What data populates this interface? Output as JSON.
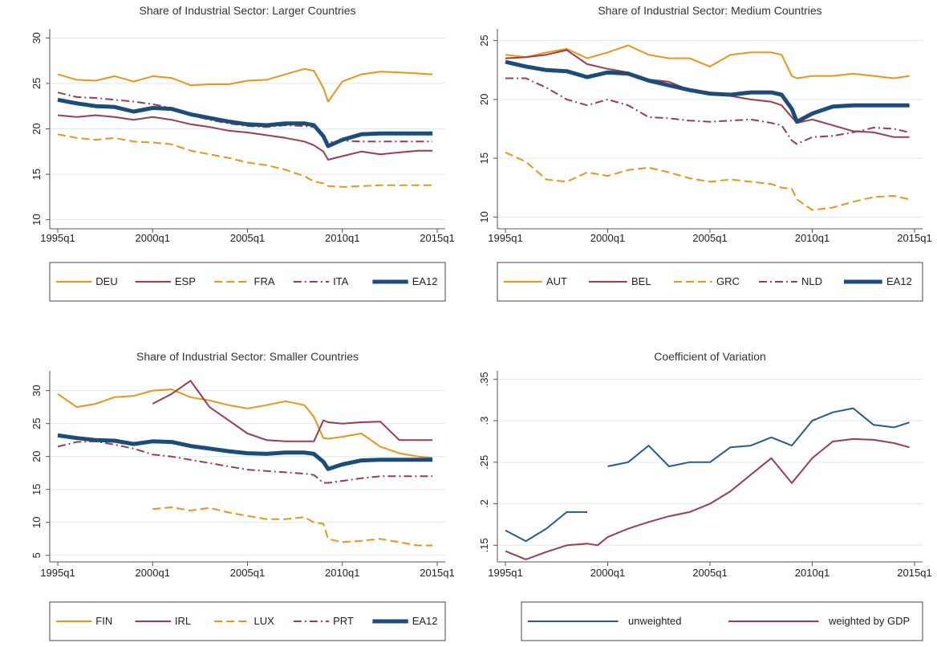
{
  "chart_data": [
    {
      "type": "line",
      "title": "Share of Industrial Sector: Larger Countries",
      "x": [
        "1995q1",
        "1996q1",
        "1997q1",
        "1998q1",
        "1999q1",
        "2000q1",
        "2001q1",
        "2002q1",
        "2003q1",
        "2004q1",
        "2005q1",
        "2006q1",
        "2007q1",
        "2008q1",
        "2008q3",
        "2009q1",
        "2009q2",
        "2010q1",
        "2011q1",
        "2012q1",
        "2013q1",
        "2014q1",
        "2014q4"
      ],
      "xlim": [
        "1995q1",
        "2015q1"
      ],
      "xticks": [
        "1995q1",
        "2000q1",
        "2005q1",
        "2010q1",
        "2015q1"
      ],
      "ylim": [
        9,
        31
      ],
      "yticks": [
        10,
        15,
        20,
        25,
        30
      ],
      "grid": true,
      "series": [
        {
          "name": "DEU",
          "color": "#e8951c",
          "dash": "solid",
          "width": 2,
          "values": [
            26,
            25.4,
            25.3,
            25.8,
            25.2,
            25.8,
            25.6,
            24.8,
            24.9,
            24.9,
            25.3,
            25.4,
            26,
            26.6,
            26.4,
            24.5,
            23,
            25.2,
            26,
            26.3,
            26.2,
            26.1,
            26
          ]
        },
        {
          "name": "ESP",
          "color": "#9b3d4a",
          "dash": "solid",
          "width": 2,
          "values": [
            21.5,
            21.3,
            21.5,
            21.3,
            21,
            21.3,
            21,
            20.5,
            20.2,
            19.8,
            19.6,
            19.3,
            19,
            18.6,
            18.2,
            17.5,
            16.6,
            17,
            17.5,
            17.2,
            17.4,
            17.6,
            17.6
          ]
        },
        {
          "name": "FRA",
          "color": "#e8951c",
          "dash": "dash",
          "width": 2,
          "values": [
            19.4,
            19,
            18.8,
            19,
            18.6,
            18.5,
            18.3,
            17.6,
            17.2,
            16.8,
            16.3,
            16,
            15.5,
            14.8,
            14.2,
            14,
            13.7,
            13.6,
            13.7,
            13.8,
            13.8,
            13.8,
            13.8
          ]
        },
        {
          "name": "ITA",
          "color": "#9b3d4a",
          "dash": "dashdot",
          "width": 2,
          "values": [
            24,
            23.5,
            23.4,
            23.2,
            23,
            22.7,
            22.3,
            21.5,
            21,
            20.6,
            20.3,
            20.2,
            20.4,
            20.3,
            20.2,
            19.2,
            18.5,
            18.7,
            18.6,
            18.6,
            18.6,
            18.6,
            18.6
          ]
        },
        {
          "name": "EA12",
          "color": "#1c4d7a",
          "dash": "solid",
          "width": 5,
          "values": [
            23.2,
            22.8,
            22.5,
            22.4,
            21.9,
            22.3,
            22.2,
            21.6,
            21.2,
            20.8,
            20.5,
            20.4,
            20.6,
            20.6,
            20.4,
            19.2,
            18.1,
            18.8,
            19.4,
            19.5,
            19.5,
            19.5,
            19.5
          ]
        }
      ]
    },
    {
      "type": "line",
      "title": "Share of Industrial Sector: Medium Countries",
      "x": [
        "1995q1",
        "1996q1",
        "1997q1",
        "1998q1",
        "1999q1",
        "2000q1",
        "2001q1",
        "2002q1",
        "2003q1",
        "2004q1",
        "2005q1",
        "2006q1",
        "2007q1",
        "2008q1",
        "2008q3",
        "2009q1",
        "2009q2",
        "2010q1",
        "2011q1",
        "2012q1",
        "2013q1",
        "2014q1",
        "2014q4"
      ],
      "xlim": [
        "1995q1",
        "2015q1"
      ],
      "xticks": [
        "1995q1",
        "2000q1",
        "2005q1",
        "2010q1",
        "2015q1"
      ],
      "ylim": [
        9,
        26
      ],
      "yticks": [
        10,
        15,
        20,
        25
      ],
      "grid": true,
      "series": [
        {
          "name": "AUT",
          "color": "#e8951c",
          "dash": "solid",
          "width": 2,
          "values": [
            23.8,
            23.6,
            24,
            24.3,
            23.5,
            24,
            24.6,
            23.8,
            23.5,
            23.5,
            22.8,
            23.8,
            24,
            24,
            23.8,
            22,
            21.8,
            22,
            22,
            22.2,
            22,
            21.8,
            22
          ]
        },
        {
          "name": "BEL",
          "color": "#9b3d4a",
          "dash": "solid",
          "width": 2,
          "values": [
            23.5,
            23.6,
            23.8,
            24.2,
            23,
            22.6,
            22.3,
            21.7,
            21.5,
            20.8,
            20.5,
            20.3,
            20,
            19.8,
            19.5,
            18.5,
            18,
            18.3,
            17.8,
            17.3,
            17.2,
            16.8,
            16.8
          ]
        },
        {
          "name": "GRC",
          "color": "#e8951c",
          "dash": "dash",
          "width": 2,
          "values": [
            15.5,
            14.7,
            13.2,
            13,
            13.8,
            13.5,
            14,
            14.2,
            13.8,
            13.3,
            13,
            13.2,
            13,
            12.8,
            12.5,
            12.4,
            11.5,
            10.6,
            10.8,
            11.3,
            11.7,
            11.8,
            11.5
          ]
        },
        {
          "name": "NLD",
          "color": "#9b3d4a",
          "dash": "dashdot",
          "width": 2,
          "values": [
            21.8,
            21.8,
            21,
            20,
            19.5,
            20,
            19.5,
            18.5,
            18.4,
            18.2,
            18.1,
            18.2,
            18.3,
            18,
            17.8,
            16.5,
            16.2,
            16.8,
            16.9,
            17.2,
            17.6,
            17.5,
            17.2
          ]
        },
        {
          "name": "EA12",
          "color": "#1c4d7a",
          "dash": "solid",
          "width": 5,
          "values": [
            23.2,
            22.8,
            22.5,
            22.4,
            21.9,
            22.3,
            22.2,
            21.6,
            21.2,
            20.8,
            20.5,
            20.4,
            20.6,
            20.6,
            20.4,
            19.2,
            18.1,
            18.8,
            19.4,
            19.5,
            19.5,
            19.5,
            19.5
          ]
        }
      ]
    },
    {
      "type": "line",
      "title": "Share of Industrial Sector: Smaller Countries",
      "x": [
        "1995q1",
        "1996q1",
        "1997q1",
        "1998q1",
        "1999q1",
        "2000q1",
        "2001q1",
        "2002q1",
        "2003q1",
        "2004q1",
        "2005q1",
        "2006q1",
        "2007q1",
        "2008q1",
        "2008q3",
        "2009q1",
        "2009q2",
        "2010q1",
        "2011q1",
        "2012q1",
        "2013q1",
        "2014q1",
        "2014q4"
      ],
      "xlim": [
        "1995q1",
        "2015q1"
      ],
      "xticks": [
        "1995q1",
        "2000q1",
        "2005q1",
        "2010q1",
        "2015q1"
      ],
      "ylim": [
        4,
        33
      ],
      "yticks": [
        5,
        10,
        15,
        20,
        25,
        30
      ],
      "grid": true,
      "series": [
        {
          "name": "FIN",
          "color": "#e8951c",
          "dash": "solid",
          "width": 2,
          "values": [
            29.5,
            27.5,
            28,
            29,
            29.2,
            30,
            30.2,
            29,
            28.5,
            27.8,
            27.3,
            27.8,
            28.4,
            27.8,
            26,
            22.8,
            22.7,
            23,
            23.5,
            21.5,
            20.5,
            20,
            19.8
          ]
        },
        {
          "name": "IRL",
          "color": "#9b3d4a",
          "dash": "solid",
          "width": 2,
          "values": [
            null,
            null,
            null,
            null,
            null,
            28,
            29.5,
            31.5,
            27.5,
            25.5,
            23.5,
            22.5,
            22.3,
            22.3,
            22.3,
            25.5,
            25.2,
            25,
            25.2,
            25.3,
            22.5,
            22.5,
            22.5
          ]
        },
        {
          "name": "LUX",
          "color": "#e8951c",
          "dash": "dash",
          "width": 2,
          "values": [
            null,
            null,
            null,
            null,
            null,
            12,
            12.3,
            11.8,
            12.2,
            11.5,
            11,
            10.5,
            10.5,
            10.8,
            10,
            9.8,
            7.5,
            7,
            7.2,
            7.5,
            7,
            6.5,
            6.5
          ]
        },
        {
          "name": "PRT",
          "color": "#9b3d4a",
          "dash": "dashdot",
          "width": 2,
          "values": [
            21.5,
            22.2,
            22.3,
            21.8,
            21.2,
            20.3,
            20,
            19.5,
            19,
            18.5,
            18,
            17.8,
            17.6,
            17.4,
            17.2,
            16,
            16,
            16.3,
            16.7,
            17,
            17,
            17,
            17
          ]
        },
        {
          "name": "EA12",
          "color": "#1c4d7a",
          "dash": "solid",
          "width": 5,
          "values": [
            23.2,
            22.8,
            22.5,
            22.4,
            21.9,
            22.3,
            22.2,
            21.6,
            21.2,
            20.8,
            20.5,
            20.4,
            20.6,
            20.6,
            20.4,
            19.2,
            18.1,
            18.8,
            19.4,
            19.5,
            19.5,
            19.5,
            19.5
          ]
        }
      ]
    },
    {
      "type": "line",
      "title": "Coefficient of Variation",
      "x": [
        "1995q1",
        "1996q1",
        "1997q1",
        "1998q1",
        "1999q1",
        "1999q3",
        "2000q1",
        "2001q1",
        "2002q1",
        "2003q1",
        "2004q1",
        "2005q1",
        "2006q1",
        "2007q1",
        "2008q1",
        "2009q1",
        "2010q1",
        "2011q1",
        "2012q1",
        "2013q1",
        "2014q1",
        "2014q4"
      ],
      "xlim": [
        "1995q1",
        "2015q1"
      ],
      "xticks": [
        "1995q1",
        "2000q1",
        "2005q1",
        "2010q1",
        "2015q1"
      ],
      "ylim": [
        0.13,
        0.36
      ],
      "yticks": [
        {
          "value": 0.15,
          "label": ".15"
        },
        {
          "value": 0.2,
          "label": ".2"
        },
        {
          "value": 0.25,
          "label": ".25"
        },
        {
          "value": 0.3,
          "label": ".3"
        },
        {
          "value": 0.35,
          "label": ".35"
        }
      ],
      "grid": true,
      "series": [
        {
          "name": "unweighted",
          "color": "#2a5a8a",
          "dash": "solid",
          "width": 2,
          "values": [
            0.168,
            0.155,
            0.17,
            0.19,
            0.19,
            null,
            0.245,
            0.25,
            0.27,
            0.245,
            0.25,
            0.25,
            0.268,
            0.27,
            0.28,
            0.27,
            0.3,
            0.31,
            0.315,
            0.295,
            0.292,
            0.298
          ]
        },
        {
          "name": "weighted by GDP",
          "color": "#9b3d4a",
          "dash": "solid",
          "width": 2,
          "values": [
            0.143,
            0.133,
            0.142,
            0.15,
            0.152,
            0.15,
            0.16,
            0.17,
            0.178,
            0.185,
            0.19,
            0.2,
            0.215,
            0.235,
            0.255,
            0.225,
            0.255,
            0.275,
            0.278,
            0.277,
            0.273,
            0.268
          ]
        }
      ]
    }
  ]
}
